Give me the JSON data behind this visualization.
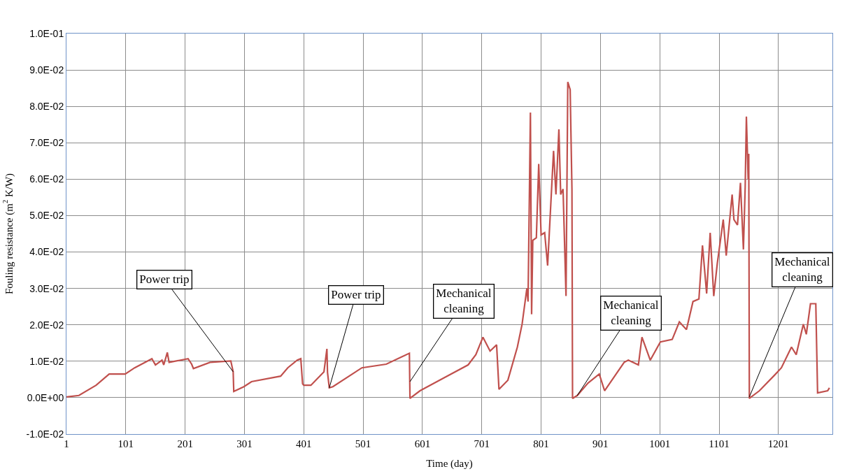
{
  "chart_data": {
    "type": "line",
    "xlabel": "Time (day)",
    "ylabel": "Fouling resistance (m$^{2}$ K/W)",
    "x": [
      1,
      22,
      51,
      73,
      100,
      116,
      145,
      151,
      162,
      165,
      171,
      174,
      206,
      212,
      215,
      243,
      278,
      282,
      283,
      300,
      313,
      362,
      374,
      390,
      396,
      399,
      401,
      413,
      435,
      440,
      441,
      444,
      450,
      499,
      540,
      579,
      580,
      597,
      638,
      678,
      691,
      703,
      715,
      726,
      730,
      745,
      761,
      769,
      777,
      779,
      783,
      785,
      787,
      793,
      797,
      801,
      807,
      812,
      816,
      822,
      826,
      831,
      834,
      838,
      843,
      846,
      850,
      853,
      854,
      862,
      880,
      899,
      908,
      941,
      948,
      965,
      971,
      985,
      1002,
      1022,
      1034,
      1046,
      1057,
      1067,
      1073,
      1080,
      1086,
      1092,
      1098,
      1108,
      1113,
      1123,
      1126,
      1132,
      1137,
      1142,
      1145,
      1147,
      1150,
      1151,
      1152,
      1169,
      1194,
      1206,
      1223,
      1231,
      1243,
      1248,
      1255,
      1264,
      1267,
      1284,
      1287
    ],
    "series": [
      {
        "color": "#c0504d",
        "values": [
          0.0002,
          0.0006,
          0.0034,
          0.0065,
          0.0065,
          0.0082,
          0.0107,
          0.009,
          0.0103,
          0.009,
          0.0124,
          0.0097,
          0.0107,
          0.0092,
          0.008,
          0.0097,
          0.0101,
          0.0071,
          0.0017,
          0.003,
          0.0044,
          0.0059,
          0.0082,
          0.0103,
          0.0107,
          0.0038,
          0.0034,
          0.0034,
          0.0071,
          0.0134,
          0.0069,
          0.0027,
          0.003,
          0.0082,
          0.0092,
          0.0122,
          -0.0002,
          0.0019,
          0.0055,
          0.009,
          0.0118,
          0.0166,
          0.0128,
          0.0145,
          0.0023,
          0.0048,
          0.0139,
          0.0202,
          0.03,
          0.0264,
          0.0783,
          0.0229,
          0.0432,
          0.0439,
          0.0642,
          0.0447,
          0.0453,
          0.0363,
          0.0489,
          0.0678,
          0.0558,
          0.0737,
          0.0558,
          0.0573,
          0.0279,
          0.0867,
          0.0846,
          0.0573,
          -0.0002,
          0.0006,
          0.004,
          0.0065,
          0.0019,
          0.0097,
          0.0103,
          0.009,
          0.0166,
          0.0103,
          0.0153,
          0.016,
          0.0208,
          0.0187,
          0.0264,
          0.0271,
          0.0418,
          0.0286,
          0.0453,
          0.0279,
          0.0369,
          0.0489,
          0.039,
          0.0558,
          0.0489,
          0.0474,
          0.059,
          0.0407,
          0.0579,
          0.0772,
          0.06,
          0.067,
          -0.0002,
          0.0019,
          0.0061,
          0.0082,
          0.0139,
          0.0118,
          0.0202,
          0.0174,
          0.0258,
          0.0258,
          0.0013,
          0.0019,
          0.0027
        ]
      }
    ],
    "xlim": [
      1,
      1292
    ],
    "xticks": [
      1,
      101,
      201,
      301,
      401,
      501,
      601,
      701,
      801,
      901,
      1001,
      1101,
      1201
    ],
    "ylim": [
      -0.01,
      0.1
    ],
    "yticks": [
      {
        "value": -0.01,
        "label": "-1.0E-02"
      },
      {
        "value": 0,
        "label": "0.0E+00"
      },
      {
        "value": 0.01,
        "label": "1.0E-02"
      },
      {
        "value": 0.02,
        "label": "2.0E-02"
      },
      {
        "value": 0.03,
        "label": "3.0E-02"
      },
      {
        "value": 0.04,
        "label": "4.0E-02"
      },
      {
        "value": 0.05,
        "label": "5.0E-02"
      },
      {
        "value": 0.06,
        "label": "6.0E-02"
      },
      {
        "value": 0.07,
        "label": "7.0E-02"
      },
      {
        "value": 0.08,
        "label": "8.0E-02"
      },
      {
        "value": 0.09,
        "label": "9.0E-02"
      },
      {
        "value": 0.1,
        "label": "1.0E-01"
      }
    ],
    "annotations": [
      {
        "text": "Power trip",
        "x": 282,
        "y": 0.0071
      },
      {
        "text": "Power trip",
        "x": 444,
        "y": 0.0027
      },
      {
        "text": "Mechanical\ncleaning",
        "x": 580,
        "y": 0.0044
      },
      {
        "text": "Mechanical\ncleaning",
        "x": 862,
        "y": 0.0006
      },
      {
        "text": "Mechanical\ncleaning",
        "x": 1152,
        "y": 0.0002
      }
    ],
    "grid": true,
    "marker": "none",
    "line_style": "solid"
  }
}
